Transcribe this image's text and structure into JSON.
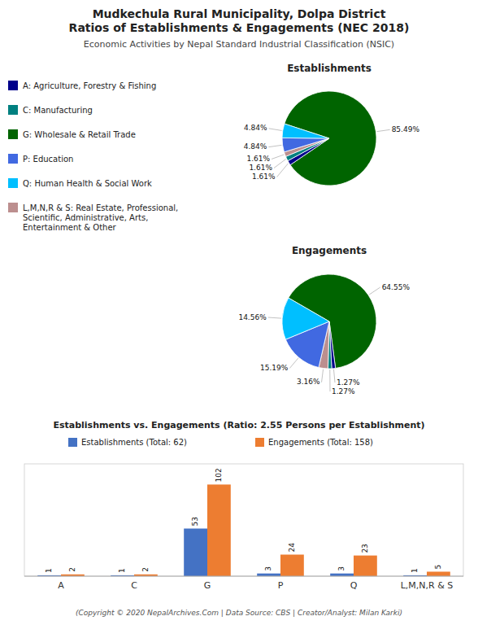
{
  "title": "Mudkechula Rural Municipality, Dolpa District\nRatios of Establishments & Engagements (NEC 2018)",
  "subtitle": "Economic Activities by Nepal Standard Industrial Classification (NSIC)",
  "footer": "(Copyright © 2020 NepalArchives.Com | Data Source: CBS | Creator/Analyst: Milan Karki)",
  "legend_entries": [
    {
      "name": "A: Agriculture, Forestry & Fishing",
      "color": "#00008B"
    },
    {
      "name": "C: Manufacturing",
      "color": "#008080"
    },
    {
      "name": "G: Wholesale & Retail Trade",
      "color": "#006400"
    },
    {
      "name": "P: Education",
      "color": "#4169E1"
    },
    {
      "name": "Q: Human Health & Social Work",
      "color": "#00BFFF"
    },
    {
      "name": "L,M,N,R & S: Real Estate, Professional,\nScientific, Administrative, Arts,\nEntertainment & Other",
      "color": "#BC8F8F"
    }
  ],
  "chart_data": [
    {
      "type": "pie",
      "title": "Establishments",
      "values": [
        85.49,
        1.61,
        1.61,
        1.61,
        4.84,
        4.84
      ],
      "value_labels": [
        "85.49%",
        "1.61%",
        "1.61%",
        "1.61%",
        "4.84%",
        "4.84%"
      ],
      "colors": [
        "#006400",
        "#00008B",
        "#008080",
        "#BC8F8F",
        "#4169E1",
        "#00BFFF"
      ],
      "data_labels": true
    },
    {
      "type": "pie",
      "title": "Engagements",
      "values": [
        64.55,
        1.27,
        1.27,
        3.16,
        15.19,
        14.56
      ],
      "value_labels": [
        "64.55%",
        "1.27%",
        "1.27%",
        "3.16%",
        "15.19%",
        "14.56%"
      ],
      "colors": [
        "#006400",
        "#00008B",
        "#008080",
        "#BC8F8F",
        "#4169E1",
        "#00BFFF"
      ],
      "data_labels": true
    },
    {
      "type": "bar",
      "title": "Establishments vs. Engagements (Ratio: 2.55 Persons per Establishment)",
      "categories": [
        "A",
        "C",
        "G",
        "P",
        "Q",
        "L,M,N,R & S"
      ],
      "series": [
        {
          "name": "Establishments (Total: 62)",
          "color": "#4472C4",
          "values": [
            1,
            1,
            53,
            3,
            3,
            1
          ]
        },
        {
          "name": "Engagements (Total: 158)",
          "color": "#ED7D31",
          "values": [
            2,
            2,
            102,
            24,
            23,
            5
          ]
        }
      ],
      "ylim": [
        0,
        125
      ],
      "yticks": [],
      "tick_labels": "x",
      "data_labels": true,
      "legend": "top"
    }
  ]
}
